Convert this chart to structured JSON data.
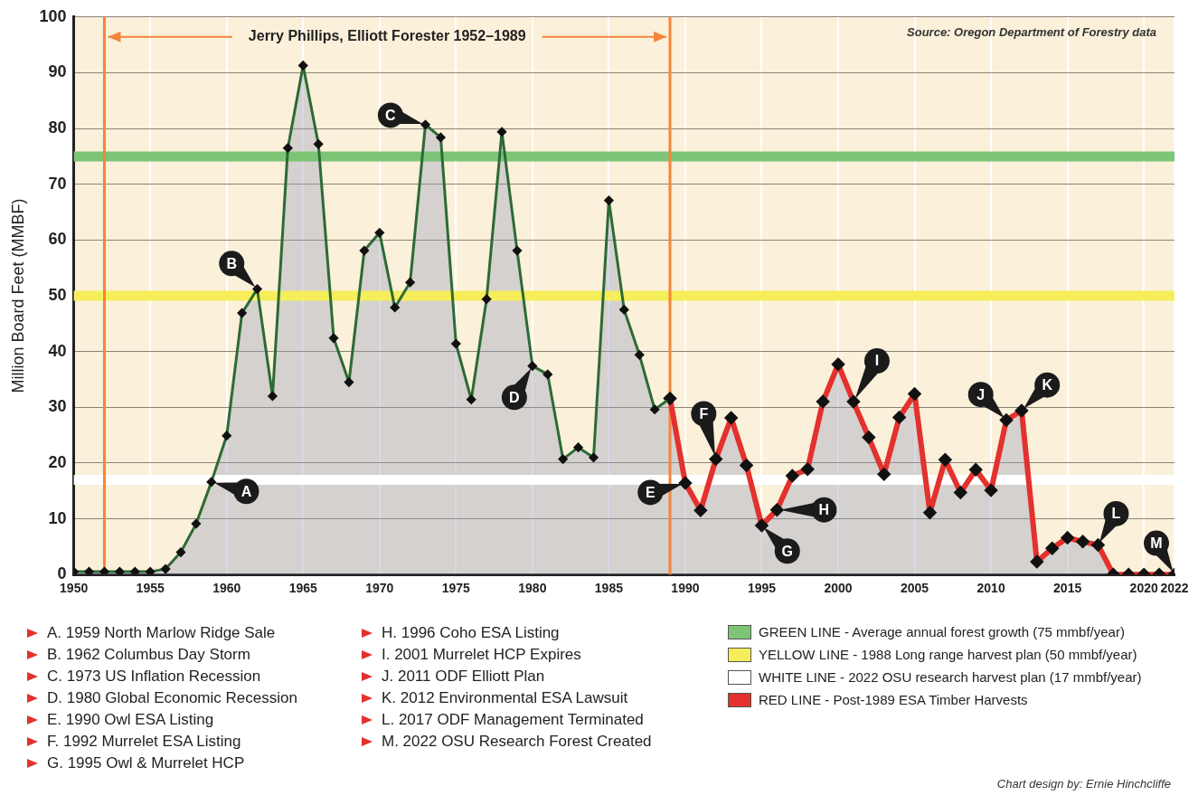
{
  "chart_data": {
    "type": "area",
    "ylabel": "Million Board Feet (MMBF)",
    "series": [
      {
        "name": "RED LINE - Post-1989 ESA Timber Harvests",
        "color": "#e3312e",
        "marker": "diamond",
        "x": [
          1989,
          1990,
          1991,
          1992,
          1993,
          1994,
          1995,
          1996,
          1997,
          1998,
          1999,
          2000,
          2001,
          2002,
          2003,
          2004,
          2005,
          2006,
          2007,
          2008,
          2009,
          2010,
          2011,
          2012,
          2013,
          2014,
          2015,
          2016,
          2017,
          2018,
          2019,
          2020,
          2021,
          2022
        ],
        "values": [
          31.6,
          16.4,
          11.5,
          20.7,
          28.1,
          19.6,
          8.8,
          11.6,
          17.7,
          18.9,
          31.0,
          37.7,
          31.0,
          24.6,
          18.0,
          28.2,
          32.4,
          11.1,
          20.6,
          14.7,
          18.8,
          15.1,
          27.7,
          29.4,
          2.3,
          4.7,
          6.6,
          5.9,
          5.3,
          0,
          0,
          0,
          0,
          0
        ]
      },
      {
        "color": "#2d6a34",
        "marker": "diamond",
        "x": [
          1950,
          1951,
          1952,
          1953,
          1954,
          1955,
          1956,
          1957,
          1958,
          1959,
          1960,
          1961,
          1962,
          1963,
          1964,
          1965,
          1966,
          1967,
          1968,
          1969,
          1970,
          1971,
          1972,
          1973,
          1974,
          1975,
          1976,
          1977,
          1978,
          1979,
          1980,
          1981,
          1982,
          1983,
          1984,
          1985,
          1986,
          1987,
          1988,
          1989
        ],
        "values": [
          0.5,
          0.5,
          0.5,
          0.5,
          0.5,
          0.5,
          1.0,
          4.0,
          9.1,
          16.6,
          24.9,
          46.9,
          51.2,
          32.0,
          76.5,
          91.3,
          77.2,
          42.4,
          34.5,
          58.1,
          61.3,
          47.9,
          52.4,
          80.7,
          78.4,
          41.4,
          31.4,
          49.4,
          79.4,
          58.1,
          37.4,
          35.9,
          20.7,
          22.8,
          21.0,
          67.1,
          47.5,
          39.4,
          29.6,
          31.6
        ]
      }
    ],
    "xlim": [
      1950,
      2022
    ],
    "xticks": [
      1950,
      1955,
      1960,
      1965,
      1970,
      1975,
      1980,
      1985,
      1990,
      1995,
      2000,
      2005,
      2010,
      2015,
      2020,
      2022
    ],
    "ylim": [
      0,
      100
    ],
    "yticks": [
      0,
      10,
      20,
      30,
      40,
      50,
      60,
      70,
      80,
      90,
      100
    ],
    "grid": true,
    "legend": "bottom",
    "ref_lines": [
      {
        "axis": "y",
        "value": 75,
        "label": "GREEN LINE - Average annual forest growth (75 mmbf/year)",
        "color": "#7cc576"
      },
      {
        "axis": "y",
        "value": 50,
        "label": "YELLOW LINE - 1988 Long range harvest plan (50 mmbf/year)",
        "color": "#f5ee5a"
      },
      {
        "axis": "y",
        "value": 17,
        "label": "WHITE LINE - 2022 OSU research harvest plan (17 mmbf/year)",
        "color": "#ffffff"
      },
      {
        "axis": "x",
        "value": 1952,
        "color": "#f4853b"
      },
      {
        "axis": "x",
        "value": 1989,
        "label": "Jerry Phillips, Elliott Forester 1952–1989",
        "color": "#f4853b"
      }
    ],
    "annotations": [
      "Source: Oregon Department of Forestry data",
      {
        "text": "A",
        "x": 1959,
        "y": 16.6
      },
      {
        "text": "B",
        "x": 1962,
        "y": 51.2
      },
      {
        "text": "C",
        "x": 1973,
        "y": 80.7
      },
      {
        "text": "D",
        "x": 1980,
        "y": 37.4
      },
      {
        "text": "E",
        "x": 1990,
        "y": 16.4
      },
      {
        "text": "F",
        "x": 1992,
        "y": 20.7
      },
      {
        "text": "G",
        "x": 1995,
        "y": 8.8
      },
      {
        "text": "H",
        "x": 1996,
        "y": 11.6
      },
      {
        "text": "I",
        "x": 2001,
        "y": 31.0
      },
      {
        "text": "J",
        "x": 2011,
        "y": 27.7
      },
      {
        "text": "K",
        "x": 2012,
        "y": 29.4
      },
      {
        "text": "L",
        "x": 2017,
        "y": 5.3
      },
      {
        "text": "M",
        "x": 2022,
        "y": 0
      },
      "A. 1959 North Marlow Ridge Sale",
      "B. 1962 Columbus Day Storm",
      "C. 1973 US Inflation Recession",
      "D. 1980 Global Economic Recession",
      "E. 1990 Owl ESA Listing",
      "F. 1992 Murrelet ESA Listing",
      "G. 1995 Owl & Murrelet HCP",
      "H. 1996 Coho ESA Listing",
      "I. 2001 Murrelet HCP Expires",
      "J. 2011 ODF Elliott Plan",
      "K. 2012 Environmental ESA Lawsuit",
      "L. 2017 ODF Management Terminated",
      "M. 2022 OSU Research Forest Created",
      "Chart design by: Ernie Hinchcliffe"
    ]
  }
}
